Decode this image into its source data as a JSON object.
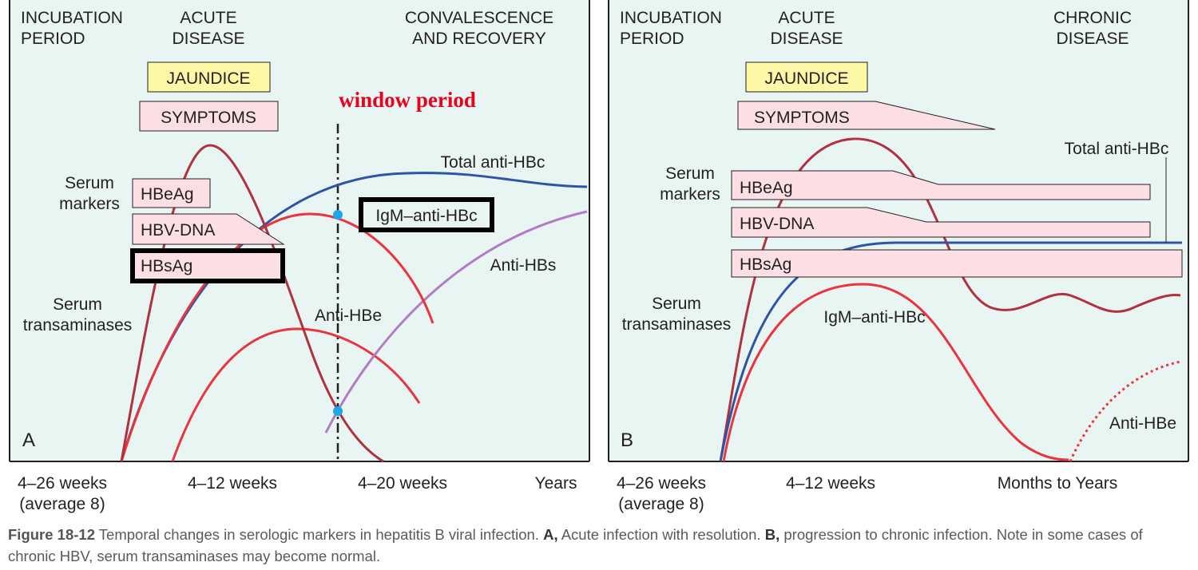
{
  "panel_a": {
    "letter": "A",
    "phases": {
      "incubation": [
        "INCUBATION",
        "PERIOD"
      ],
      "acute": [
        "ACUTE",
        "DISEASE"
      ],
      "recovery": [
        "CONVALESCENCE",
        "AND RECOVERY"
      ]
    },
    "boxes": {
      "jaundice": "JAUNDICE",
      "symptoms": "SYMPTOMS",
      "hbeag": "HBeAg",
      "hbvdna": "HBV-DNA",
      "hbsag": "HBsAg"
    },
    "side_labels": {
      "serum_markers": [
        "Serum",
        "markers"
      ],
      "serum_transaminases": [
        "Serum",
        "transaminases"
      ]
    },
    "curve_labels": {
      "total_anti_hbc": "Total anti-HBc",
      "igm_anti_hbc": "IgM–anti-HBc",
      "anti_hbs": "Anti-HBs",
      "anti_hbe": "Anti-HBe"
    },
    "window_label": "window period",
    "x_labels": {
      "incubation": [
        "4–26 weeks",
        "(average 8)"
      ],
      "acute": "4–12 weeks",
      "recovery": "4–20 weeks",
      "end": "Years"
    }
  },
  "panel_b": {
    "letter": "B",
    "phases": {
      "incubation": [
        "INCUBATION",
        "PERIOD"
      ],
      "acute": [
        "ACUTE",
        "DISEASE"
      ],
      "chronic": [
        "CHRONIC",
        "DISEASE"
      ]
    },
    "boxes": {
      "jaundice": "JAUNDICE",
      "symptoms": "SYMPTOMS",
      "hbeag": "HBeAg",
      "hbvdna": "HBV-DNA",
      "hbsag": "HBsAg"
    },
    "side_labels": {
      "serum_markers": [
        "Serum",
        "markers"
      ],
      "serum_transaminases": [
        "Serum",
        "transaminases"
      ]
    },
    "curve_labels": {
      "total_anti_hbc": "Total anti-HBc",
      "igm_anti_hbc": "IgM–anti-HBc",
      "anti_hbe": "Anti-HBe"
    },
    "x_labels": {
      "incubation": [
        "4–26 weeks",
        "(average 8)"
      ],
      "acute": "4–12 weeks",
      "chronic": "Months to Years"
    }
  },
  "caption": {
    "figure_label": "Figure 18-12",
    "text_1": " Temporal changes in serologic markers in hepatitis B viral infection. ",
    "a_label": "A,",
    "text_2": " Acute infection with resolution. ",
    "b_label": "B,",
    "text_3": " progression to chronic infection. Note in some cases of chronic HBV, serum transaminases may become normal."
  },
  "colors": {
    "panel_bg": "#e8f5f2",
    "transaminase_curve": "#b0313f",
    "total_anti_hbc_curve": "#2e54a5",
    "igm_anti_hbc_curve": "#e8353f",
    "anti_hbe_curve": "#e8353f",
    "anti_hbs_curve": "#b07cc6",
    "box_pink": "#fbdfe5",
    "box_yellow": "#fdf8a6",
    "window_marker": "#1ba7e8",
    "window_label": "#e8001c"
  }
}
